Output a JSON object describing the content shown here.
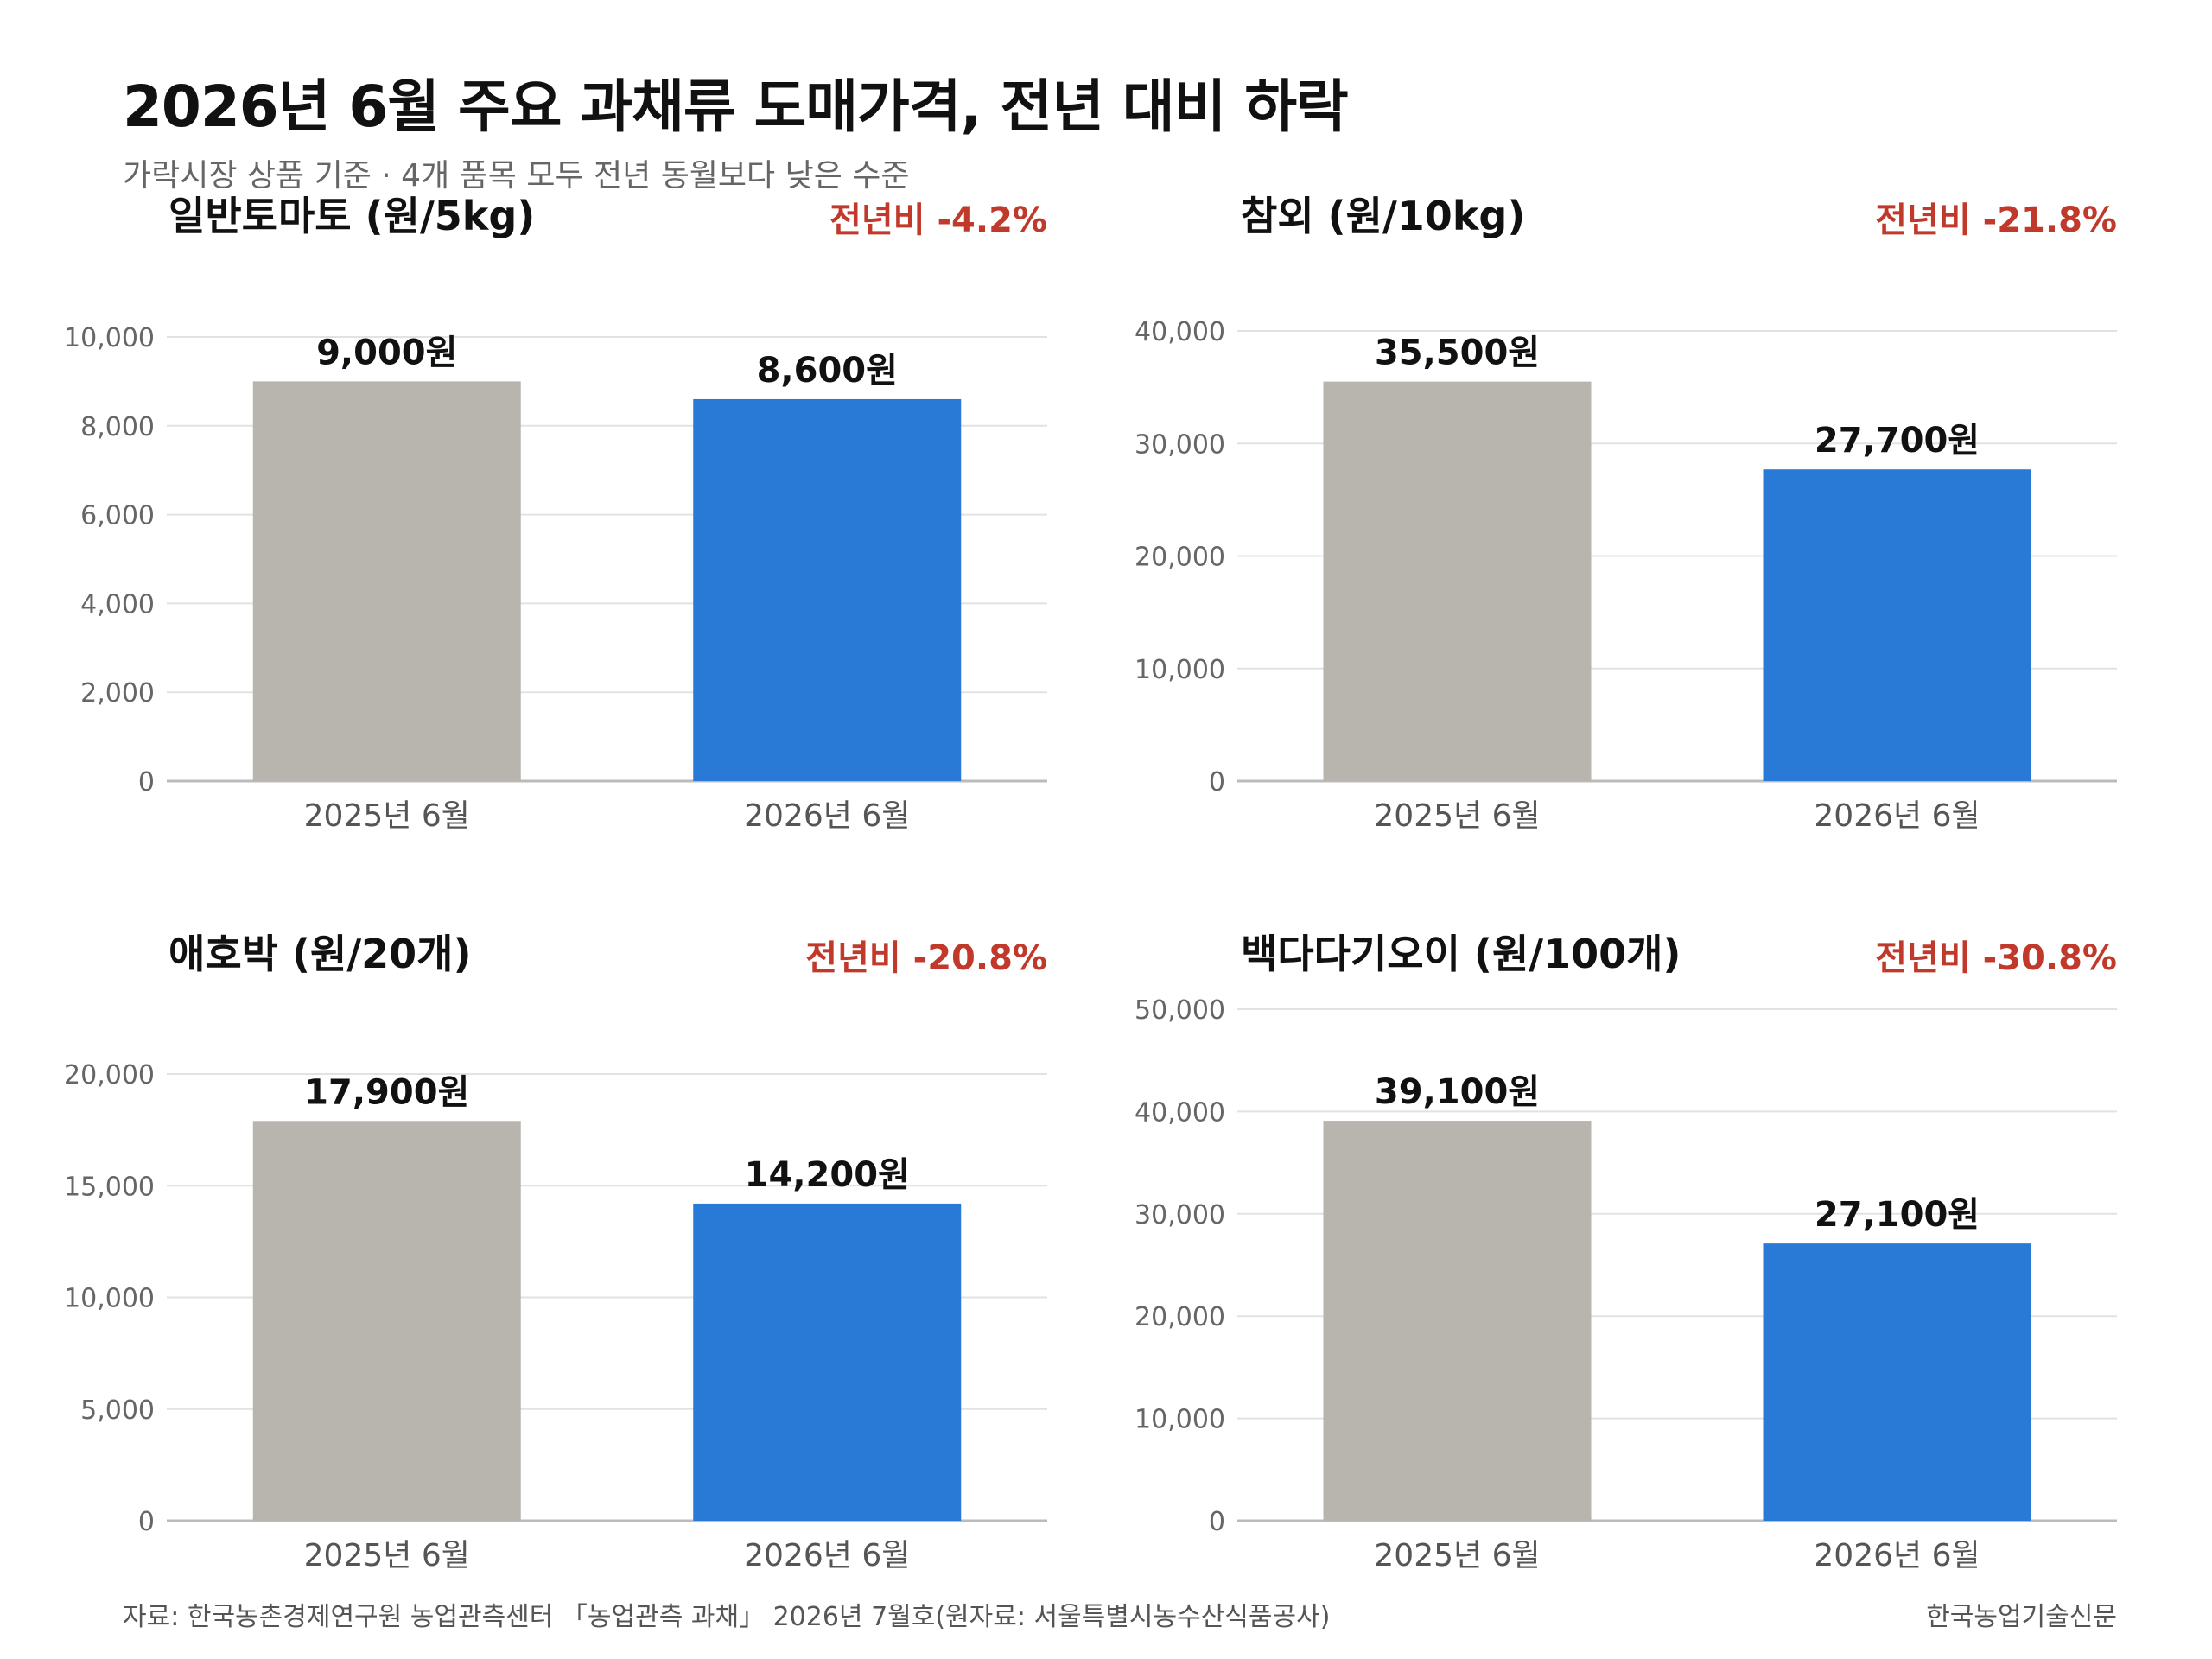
{
  "title": "2026년 6월 주요 과채류 도매가격, 전년 대비 하락",
  "subtitle": "가락시장 상품 기준 · 4개 품목 모두 전년 동월보다 낮은 수준",
  "footer": {
    "source": "자료: 한국농촌경제연구원 농업관측센터 「농업관측 과채」 2026년 7월호(원자료: 서울특별시농수산식품공사)",
    "brand": "한국농업기술신문"
  },
  "colors": {
    "prev_year": "#b8b5ae",
    "curr_year": "#2979d6",
    "change": "#c0392b"
  },
  "chart_data": [
    {
      "type": "bar",
      "title": "일반토마토 (원/5kg)",
      "change_label": "전년비 -4.2%",
      "categories": [
        "2025년 6월",
        "2026년 6월"
      ],
      "values": [
        9000,
        8600
      ],
      "value_labels": [
        "9,000원",
        "8,600원"
      ],
      "ylim": [
        0,
        10000
      ],
      "yticks": [
        0,
        2000,
        4000,
        6000,
        8000,
        10000
      ],
      "ytick_labels": [
        "0",
        "2,000",
        "4,000",
        "6,000",
        "8,000",
        "10,000"
      ],
      "grid": true
    },
    {
      "type": "bar",
      "title": "참외 (원/10kg)",
      "change_label": "전년비 -21.8%",
      "categories": [
        "2025년 6월",
        "2026년 6월"
      ],
      "values": [
        35500,
        27700
      ],
      "value_labels": [
        "35,500원",
        "27,700원"
      ],
      "ylim": [
        0,
        40000
      ],
      "yticks": [
        0,
        10000,
        20000,
        30000,
        40000
      ],
      "ytick_labels": [
        "0",
        "10,000",
        "20,000",
        "30,000",
        "40,000"
      ],
      "grid": true
    },
    {
      "type": "bar",
      "title": "애호박 (원/20개)",
      "change_label": "전년비 -20.8%",
      "categories": [
        "2025년 6월",
        "2026년 6월"
      ],
      "values": [
        17900,
        14200
      ],
      "value_labels": [
        "17,900원",
        "14,200원"
      ],
      "ylim": [
        0,
        20000
      ],
      "yticks": [
        0,
        5000,
        10000,
        15000,
        20000
      ],
      "ytick_labels": [
        "0",
        "5,000",
        "10,000",
        "15,000",
        "20,000"
      ],
      "grid": true
    },
    {
      "type": "bar",
      "title": "백다다기오이 (원/100개)",
      "change_label": "전년비 -30.8%",
      "categories": [
        "2025년 6월",
        "2026년 6월"
      ],
      "values": [
        39100,
        27100
      ],
      "value_labels": [
        "39,100원",
        "27,100원"
      ],
      "ylim": [
        0,
        50000
      ],
      "yticks": [
        0,
        10000,
        20000,
        30000,
        40000,
        50000
      ],
      "ytick_labels": [
        "0",
        "10,000",
        "20,000",
        "30,000",
        "40,000",
        "50,000"
      ],
      "grid": true
    }
  ]
}
